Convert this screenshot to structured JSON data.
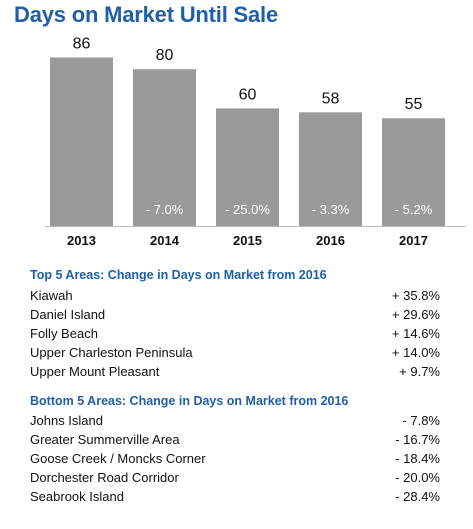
{
  "title": "Days on Market Until Sale",
  "chart_data": {
    "type": "bar",
    "title": "Days on Market Until Sale",
    "categories": [
      "2013",
      "2014",
      "2015",
      "2016",
      "2017"
    ],
    "values": [
      86,
      80,
      60,
      58,
      55
    ],
    "change_labels": [
      "",
      "- 7.0%",
      "- 25.0%",
      "- 3.3%",
      "- 5.2%"
    ],
    "ylim": [
      0,
      100
    ],
    "bar_color": "#9a9a9a",
    "grid": false,
    "xlabel": "",
    "ylabel": ""
  },
  "top_section": {
    "heading": "Top 5 Areas: Change in Days on Market from 2016",
    "rows": [
      {
        "name": "Kiawah",
        "value": "+ 35.8%"
      },
      {
        "name": "Daniel Island",
        "value": "+ 29.6%"
      },
      {
        "name": "Folly Beach",
        "value": "+ 14.6%"
      },
      {
        "name": "Upper Charleston Peninsula",
        "value": "+ 14.0%"
      },
      {
        "name": "Upper Mount Pleasant",
        "value": "+ 9.7%"
      }
    ]
  },
  "bottom_section": {
    "heading": "Bottom 5 Areas: Change in Days on Market from 2016",
    "rows": [
      {
        "name": "Johns Island",
        "value": "- 7.8%"
      },
      {
        "name": "Greater Summerville Area",
        "value": "- 16.7%"
      },
      {
        "name": "Goose Creek / Moncks Corner",
        "value": "- 18.4%"
      },
      {
        "name": "Dorchester Road Corridor",
        "value": "- 20.0%"
      },
      {
        "name": "Seabrook Island",
        "value": "- 28.4%"
      }
    ]
  },
  "accent_color": "#1f5ea8"
}
